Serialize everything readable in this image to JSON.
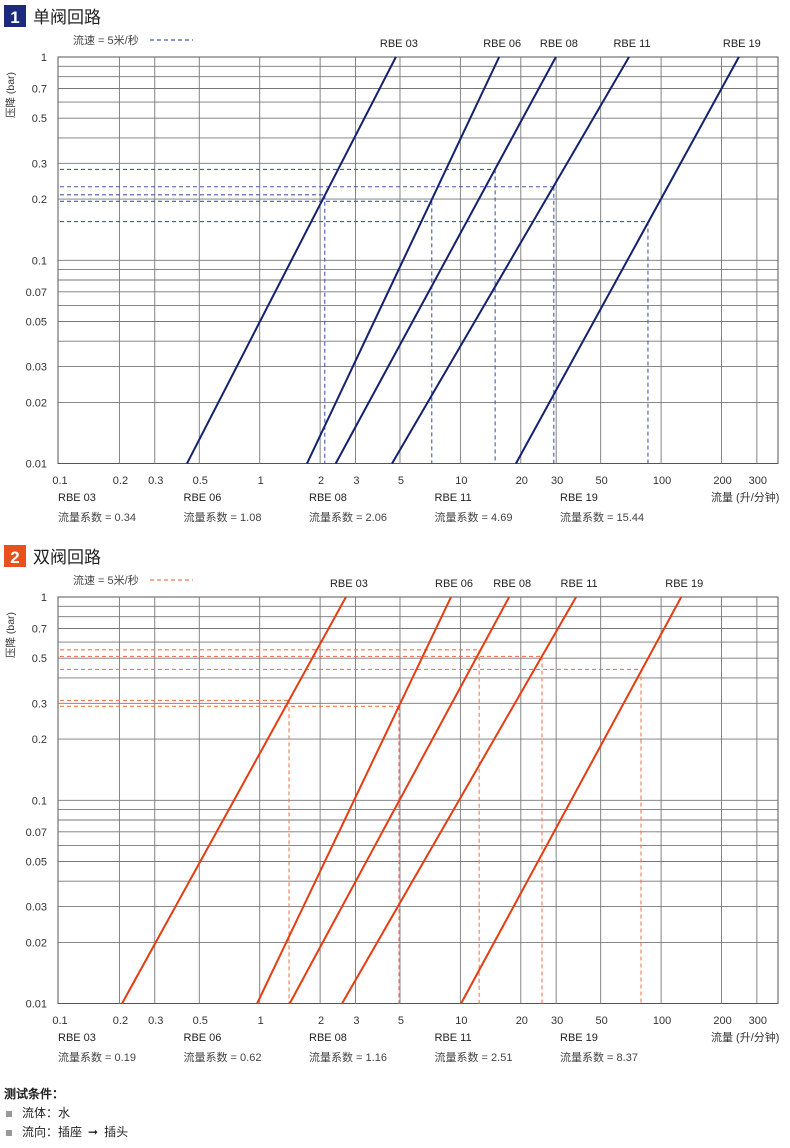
{
  "chart_data": [
    {
      "type": "line",
      "badge": "1",
      "title": "单阀回路",
      "legend_text": "流速 = 5米/秒",
      "ylabel": "压降 (bar)",
      "xlabel": "流量 (升/分钟)",
      "xscale": "log",
      "yscale": "log",
      "xlim": [
        0.1,
        380
      ],
      "ylim": [
        0.01,
        1
      ],
      "grid": true,
      "x_ticks": [
        "0.1",
        "0.2",
        "0.3",
        "0.5",
        "1",
        "2",
        "3",
        "5",
        "10",
        "20",
        "30",
        "50",
        "100",
        "200",
        "300"
      ],
      "y_ticks": [
        "1",
        "0.7",
        "0.5",
        "0.3",
        "0.2",
        "0.1",
        "0.07",
        "0.05",
        "0.03",
        "0.02",
        "0.01"
      ],
      "y_grid": [
        0.9,
        0.8,
        0.7,
        0.6,
        0.5,
        0.4,
        0.3,
        0.2,
        0.09,
        0.08,
        0.07,
        0.06,
        0.05,
        0.04,
        0.03,
        0.02
      ],
      "colors": {
        "badge": "#1b2a7a",
        "line": "#14216e",
        "dash": "#4659b0"
      },
      "series": [
        {
          "name": "RBE 03",
          "kv_label": "流量系数 = 0.34",
          "q_at_0_01bar": 0.434,
          "q_at_1bar": 4.77,
          "op_point": {
            "q": 2.11,
            "dp": 0.21
          }
        },
        {
          "name": "RBE 06",
          "kv_label": "流量系数 = 1.08",
          "q_at_0_01bar": 1.72,
          "q_at_1bar": 15.6,
          "op_point": {
            "q": 7.2,
            "dp": 0.195
          }
        },
        {
          "name": "RBE 08",
          "kv_label": "流量系数 = 2.06",
          "q_at_0_01bar": 2.39,
          "q_at_1bar": 29.9,
          "op_point": {
            "q": 14.9,
            "dp": 0.28
          }
        },
        {
          "name": "RBE 11",
          "kv_label": "流量系数 = 4.69",
          "q_at_0_01bar": 4.56,
          "q_at_1bar": 69.2,
          "op_point": {
            "q": 29.2,
            "dp": 0.23
          }
        },
        {
          "name": "RBE 19",
          "kv_label": "流量系数 = 15.44",
          "q_at_0_01bar": 18.9,
          "q_at_1bar": 244,
          "op_point": {
            "q": 86,
            "dp": 0.155
          }
        }
      ]
    },
    {
      "type": "line",
      "badge": "2",
      "title": "双阀回路",
      "legend_text": "流速 = 5米/秒",
      "ylabel": "压降 (bar)",
      "xlabel": "流量 (升/分钟)",
      "xscale": "log",
      "yscale": "log",
      "xlim": [
        0.1,
        380
      ],
      "ylim": [
        0.01,
        1
      ],
      "grid": true,
      "x_ticks": [
        "0.1",
        "0.2",
        "0.3",
        "0.5",
        "1",
        "2",
        "3",
        "5",
        "10",
        "20",
        "30",
        "50",
        "100",
        "200",
        "300"
      ],
      "y_ticks": [
        "1",
        "0.7",
        "0.5",
        "0.3",
        "0.2",
        "0.1",
        "0.07",
        "0.05",
        "0.03",
        "0.02",
        "0.01"
      ],
      "y_grid": [
        0.9,
        0.8,
        0.7,
        0.6,
        0.5,
        0.4,
        0.3,
        0.2,
        0.09,
        0.08,
        0.07,
        0.06,
        0.05,
        0.04,
        0.03,
        0.02
      ],
      "colors": {
        "badge": "#e8501e",
        "line": "#e53d12",
        "dash": "#f07a55"
      },
      "series": [
        {
          "name": "RBE 03",
          "kv_label": "流量系数 = 0.19",
          "q_at_0_01bar": 0.206,
          "q_at_1bar": 2.69,
          "op_point": {
            "q": 1.4,
            "dp": 0.31
          }
        },
        {
          "name": "RBE 06",
          "kv_label": "流量系数 = 0.62",
          "q_at_0_01bar": 0.97,
          "q_at_1bar": 8.98,
          "op_point": {
            "q": 4.94,
            "dp": 0.29
          }
        },
        {
          "name": "RBE 08",
          "kv_label": "流量系数 = 1.16",
          "q_at_0_01bar": 1.41,
          "q_at_1bar": 17.5,
          "op_point": {
            "q": 12.4,
            "dp": 0.55
          }
        },
        {
          "name": "RBE 11",
          "kv_label": "流量系数 = 2.51",
          "q_at_0_01bar": 2.57,
          "q_at_1bar": 37.7,
          "op_point": {
            "q": 25.5,
            "dp": 0.51
          }
        },
        {
          "name": "RBE 19",
          "kv_label": "流量系数 = 8.37",
          "q_at_0_01bar": 10.07,
          "q_at_1bar": 126,
          "op_point": {
            "q": 79.4,
            "dp": 0.44
          }
        }
      ]
    }
  ],
  "conditions": {
    "title": "测试条件：",
    "fluid": "流体：水",
    "direction_prefix": "流向：插座",
    "direction_arrow": "➞",
    "direction_suffix": "插头"
  }
}
